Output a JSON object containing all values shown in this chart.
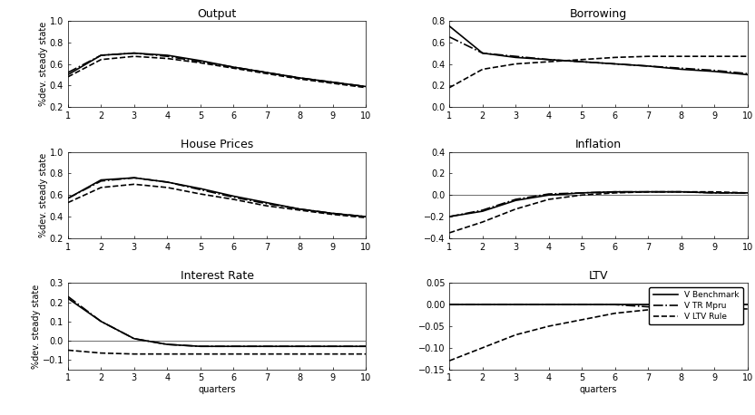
{
  "quarters": [
    1,
    2,
    3,
    4,
    5,
    6,
    7,
    8,
    9,
    10
  ],
  "output": {
    "benchmark": [
      0.5,
      0.68,
      0.7,
      0.68,
      0.63,
      0.57,
      0.52,
      0.47,
      0.43,
      0.39
    ],
    "tr_mpru": [
      0.52,
      0.68,
      0.7,
      0.67,
      0.62,
      0.57,
      0.52,
      0.47,
      0.43,
      0.39
    ],
    "ltv_rule": [
      0.48,
      0.64,
      0.67,
      0.65,
      0.61,
      0.56,
      0.51,
      0.46,
      0.42,
      0.38
    ],
    "ylim": [
      0.2,
      1.0
    ],
    "yticks": [
      0.2,
      0.4,
      0.6,
      0.8,
      1.0
    ],
    "title": "Output",
    "ylabel": "%dev. steady state"
  },
  "house_prices": {
    "benchmark": [
      0.57,
      0.74,
      0.76,
      0.72,
      0.66,
      0.59,
      0.53,
      0.47,
      0.43,
      0.4
    ],
    "tr_mpru": [
      0.57,
      0.73,
      0.76,
      0.72,
      0.65,
      0.58,
      0.52,
      0.47,
      0.43,
      0.4
    ],
    "ltv_rule": [
      0.53,
      0.67,
      0.7,
      0.67,
      0.61,
      0.56,
      0.5,
      0.46,
      0.42,
      0.39
    ],
    "ylim": [
      0.2,
      1.0
    ],
    "yticks": [
      0.2,
      0.4,
      0.6,
      0.8,
      1.0
    ],
    "title": "House Prices",
    "ylabel": "%dev. steady state"
  },
  "interest_rate": {
    "benchmark": [
      0.22,
      0.1,
      0.01,
      -0.02,
      -0.03,
      -0.03,
      -0.03,
      -0.03,
      -0.03,
      -0.03
    ],
    "tr_mpru": [
      0.23,
      0.1,
      0.01,
      -0.02,
      -0.03,
      -0.03,
      -0.03,
      -0.03,
      -0.03,
      -0.03
    ],
    "ltv_rule": [
      -0.05,
      -0.065,
      -0.07,
      -0.07,
      -0.07,
      -0.07,
      -0.07,
      -0.07,
      -0.07,
      -0.07
    ],
    "ylim": [
      -0.15,
      0.3
    ],
    "yticks": [
      -0.1,
      0.0,
      0.1,
      0.2,
      0.3
    ],
    "title": "Interest Rate",
    "ylabel": "%dev. steady state"
  },
  "borrowing": {
    "benchmark": [
      0.75,
      0.5,
      0.46,
      0.44,
      0.42,
      0.4,
      0.38,
      0.35,
      0.33,
      0.3
    ],
    "tr_mpru": [
      0.65,
      0.5,
      0.47,
      0.44,
      0.42,
      0.4,
      0.38,
      0.36,
      0.34,
      0.31
    ],
    "ltv_rule": [
      0.18,
      0.35,
      0.4,
      0.42,
      0.44,
      0.46,
      0.47,
      0.47,
      0.47,
      0.47
    ],
    "ylim": [
      0.0,
      0.8
    ],
    "yticks": [
      0.0,
      0.2,
      0.4,
      0.6,
      0.8
    ],
    "title": "Borrowing",
    "ylabel": ""
  },
  "inflation": {
    "benchmark": [
      -0.2,
      -0.15,
      -0.05,
      0.0,
      0.02,
      0.03,
      0.03,
      0.03,
      0.02,
      0.02
    ],
    "tr_mpru": [
      -0.2,
      -0.14,
      -0.04,
      0.01,
      0.02,
      0.03,
      0.03,
      0.03,
      0.02,
      0.02
    ],
    "ltv_rule": [
      -0.35,
      -0.25,
      -0.13,
      -0.04,
      0.0,
      0.02,
      0.03,
      0.03,
      0.03,
      0.02
    ],
    "ylim": [
      -0.4,
      0.4
    ],
    "yticks": [
      -0.4,
      -0.2,
      0.0,
      0.2,
      0.4
    ],
    "title": "Inflation",
    "ylabel": ""
  },
  "ltv": {
    "benchmark": [
      0.0,
      0.0,
      0.0,
      0.0,
      0.0,
      0.0,
      0.0,
      0.0,
      0.0,
      0.0
    ],
    "tr_mpru": [
      0.0,
      0.0,
      0.0,
      0.0,
      0.0,
      0.0,
      -0.005,
      -0.008,
      -0.009,
      -0.01
    ],
    "ltv_rule": [
      -0.13,
      -0.1,
      -0.07,
      -0.05,
      -0.035,
      -0.02,
      -0.012,
      -0.005,
      -0.001,
      0.0
    ],
    "ylim": [
      -0.15,
      0.05
    ],
    "yticks": [
      -0.15,
      -0.1,
      -0.05,
      0.0,
      0.05
    ],
    "title": "LTV",
    "ylabel": ""
  },
  "legend": {
    "benchmark_label": "V Benchmark",
    "tr_mpru_label": "V TR Mpru",
    "ltv_rule_label": "V LTV Rule"
  },
  "style": {
    "benchmark_ls": "-",
    "tr_mpru_ls": "-.",
    "ltv_rule_ls": "--",
    "linewidth": 1.2,
    "color": "black",
    "xlabel": "quarters",
    "title_fontsize": 9,
    "label_fontsize": 7,
    "tick_fontsize": 7
  }
}
